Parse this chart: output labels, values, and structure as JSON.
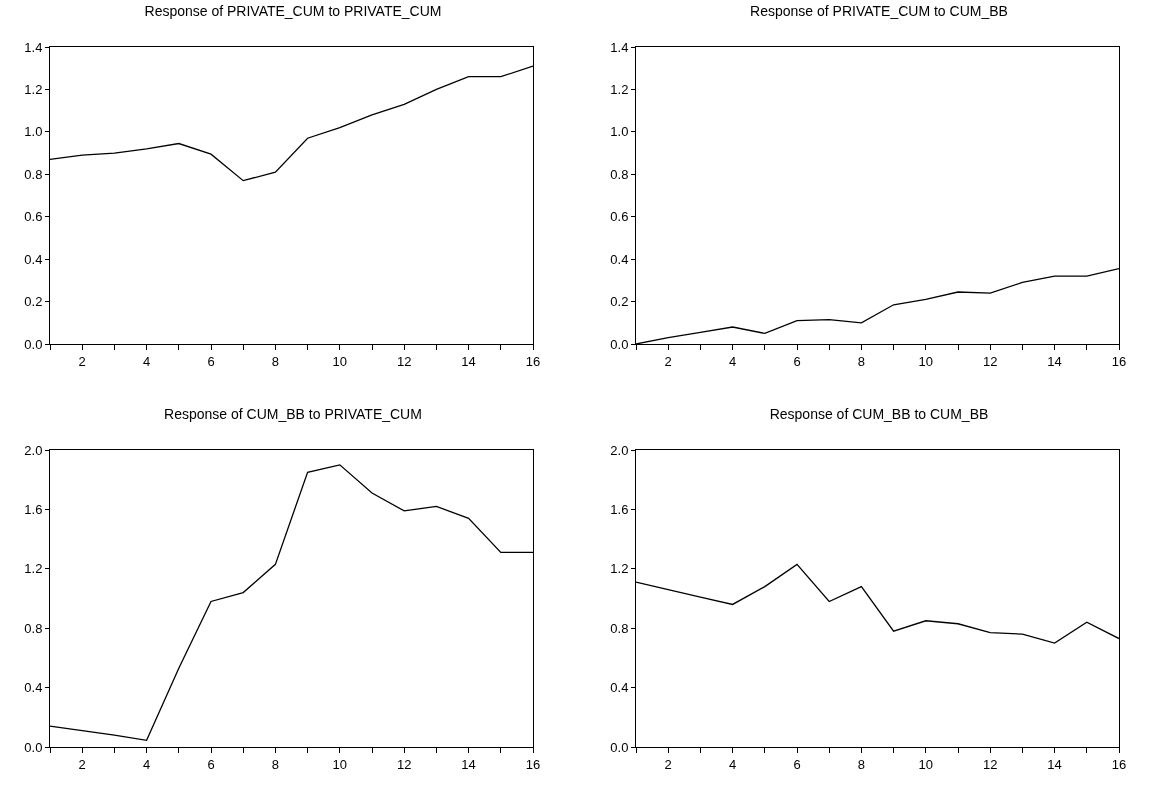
{
  "chart_data": [
    {
      "type": "line",
      "title": "Response of PRIVATE_CUM to PRIVATE_CUM",
      "x": [
        1,
        2,
        3,
        4,
        5,
        6,
        7,
        8,
        9,
        10,
        11,
        12,
        13,
        14,
        15,
        16
      ],
      "series": [
        {
          "color": "#000000",
          "values": [
            0.87,
            0.89,
            0.9,
            0.92,
            0.945,
            0.895,
            0.77,
            0.81,
            0.97,
            1.02,
            1.08,
            1.13,
            1.2,
            1.26,
            1.26,
            1.31
          ]
        }
      ],
      "xlim": [
        1,
        16
      ],
      "xticks": [
        {
          "value": 1,
          "label": null
        },
        2,
        {
          "value": 3,
          "label": null
        },
        4,
        {
          "value": 5,
          "label": null
        },
        6,
        {
          "value": 7,
          "label": null
        },
        8,
        {
          "value": 9,
          "label": null
        },
        10,
        {
          "value": 11,
          "label": null
        },
        12,
        {
          "value": 13,
          "label": null
        },
        14,
        {
          "value": 15,
          "label": null
        },
        16
      ],
      "ylim": [
        0,
        1.4
      ],
      "yticks": [
        {
          "value": 0,
          "label": "0.0"
        },
        0.2,
        0.4,
        0.6,
        0.8,
        {
          "value": 1,
          "label": "1.0"
        },
        1.2,
        1.4
      ],
      "grid": false,
      "marker": "none",
      "line_style": "solid"
    },
    {
      "type": "line",
      "title": "Response of PRIVATE_CUM to CUM_BB",
      "x": [
        1,
        2,
        3,
        4,
        5,
        6,
        7,
        8,
        9,
        10,
        11,
        12,
        13,
        14,
        15,
        16
      ],
      "series": [
        {
          "color": "#000000",
          "values": [
            0.0,
            0.03,
            0.055,
            0.08,
            0.05,
            0.11,
            0.115,
            0.1,
            0.185,
            0.21,
            0.245,
            0.24,
            0.29,
            0.32,
            0.32,
            0.355
          ]
        }
      ],
      "xlim": [
        1,
        16
      ],
      "xticks": [
        {
          "value": 1,
          "label": null
        },
        2,
        {
          "value": 3,
          "label": null
        },
        4,
        {
          "value": 5,
          "label": null
        },
        6,
        {
          "value": 7,
          "label": null
        },
        8,
        {
          "value": 9,
          "label": null
        },
        10,
        {
          "value": 11,
          "label": null
        },
        12,
        {
          "value": 13,
          "label": null
        },
        14,
        {
          "value": 15,
          "label": null
        },
        16
      ],
      "ylim": [
        0,
        1.4
      ],
      "yticks": [
        {
          "value": 0,
          "label": "0.0"
        },
        0.2,
        0.4,
        0.6,
        0.8,
        {
          "value": 1,
          "label": "1.0"
        },
        1.2,
        1.4
      ],
      "grid": false,
      "marker": "none",
      "line_style": "solid"
    },
    {
      "type": "line",
      "title": "Response of CUM_BB to PRIVATE_CUM",
      "x": [
        1,
        2,
        3,
        4,
        5,
        6,
        7,
        8,
        9,
        10,
        11,
        12,
        13,
        14,
        15,
        16
      ],
      "series": [
        {
          "color": "#000000",
          "values": [
            0.14,
            0.11,
            0.08,
            0.045,
            0.53,
            0.98,
            1.04,
            1.23,
            1.85,
            1.9,
            1.71,
            1.59,
            1.62,
            1.54,
            1.31,
            1.31
          ]
        }
      ],
      "xlim": [
        1,
        16
      ],
      "xticks": [
        {
          "value": 1,
          "label": null
        },
        2,
        {
          "value": 3,
          "label": null
        },
        4,
        {
          "value": 5,
          "label": null
        },
        6,
        {
          "value": 7,
          "label": null
        },
        8,
        {
          "value": 9,
          "label": null
        },
        10,
        {
          "value": 11,
          "label": null
        },
        12,
        {
          "value": 13,
          "label": null
        },
        14,
        {
          "value": 15,
          "label": null
        },
        16
      ],
      "ylim": [
        0,
        2
      ],
      "yticks": [
        {
          "value": 0,
          "label": "0.0"
        },
        0.4,
        0.8,
        1.2,
        1.6,
        {
          "value": 2,
          "label": "2.0"
        }
      ],
      "grid": false,
      "marker": "none",
      "line_style": "solid"
    },
    {
      "type": "line",
      "title": "Response of CUM_BB to CUM_BB",
      "x": [
        1,
        2,
        3,
        4,
        5,
        6,
        7,
        8,
        9,
        10,
        11,
        12,
        13,
        14,
        15,
        16
      ],
      "series": [
        {
          "color": "#000000",
          "values": [
            1.11,
            1.06,
            1.01,
            0.96,
            1.08,
            1.23,
            0.98,
            1.08,
            0.78,
            0.85,
            0.83,
            0.77,
            0.76,
            0.7,
            0.84,
            0.73
          ]
        }
      ],
      "xlim": [
        1,
        16
      ],
      "xticks": [
        {
          "value": 1,
          "label": null
        },
        2,
        {
          "value": 3,
          "label": null
        },
        4,
        {
          "value": 5,
          "label": null
        },
        6,
        {
          "value": 7,
          "label": null
        },
        8,
        {
          "value": 9,
          "label": null
        },
        10,
        {
          "value": 11,
          "label": null
        },
        12,
        {
          "value": 13,
          "label": null
        },
        14,
        {
          "value": 15,
          "label": null
        },
        16
      ],
      "ylim": [
        0,
        2
      ],
      "yticks": [
        {
          "value": 0,
          "label": "0.0"
        },
        0.4,
        0.8,
        1.2,
        1.6,
        {
          "value": 2,
          "label": "2.0"
        }
      ],
      "grid": false,
      "marker": "none",
      "line_style": "solid"
    }
  ]
}
